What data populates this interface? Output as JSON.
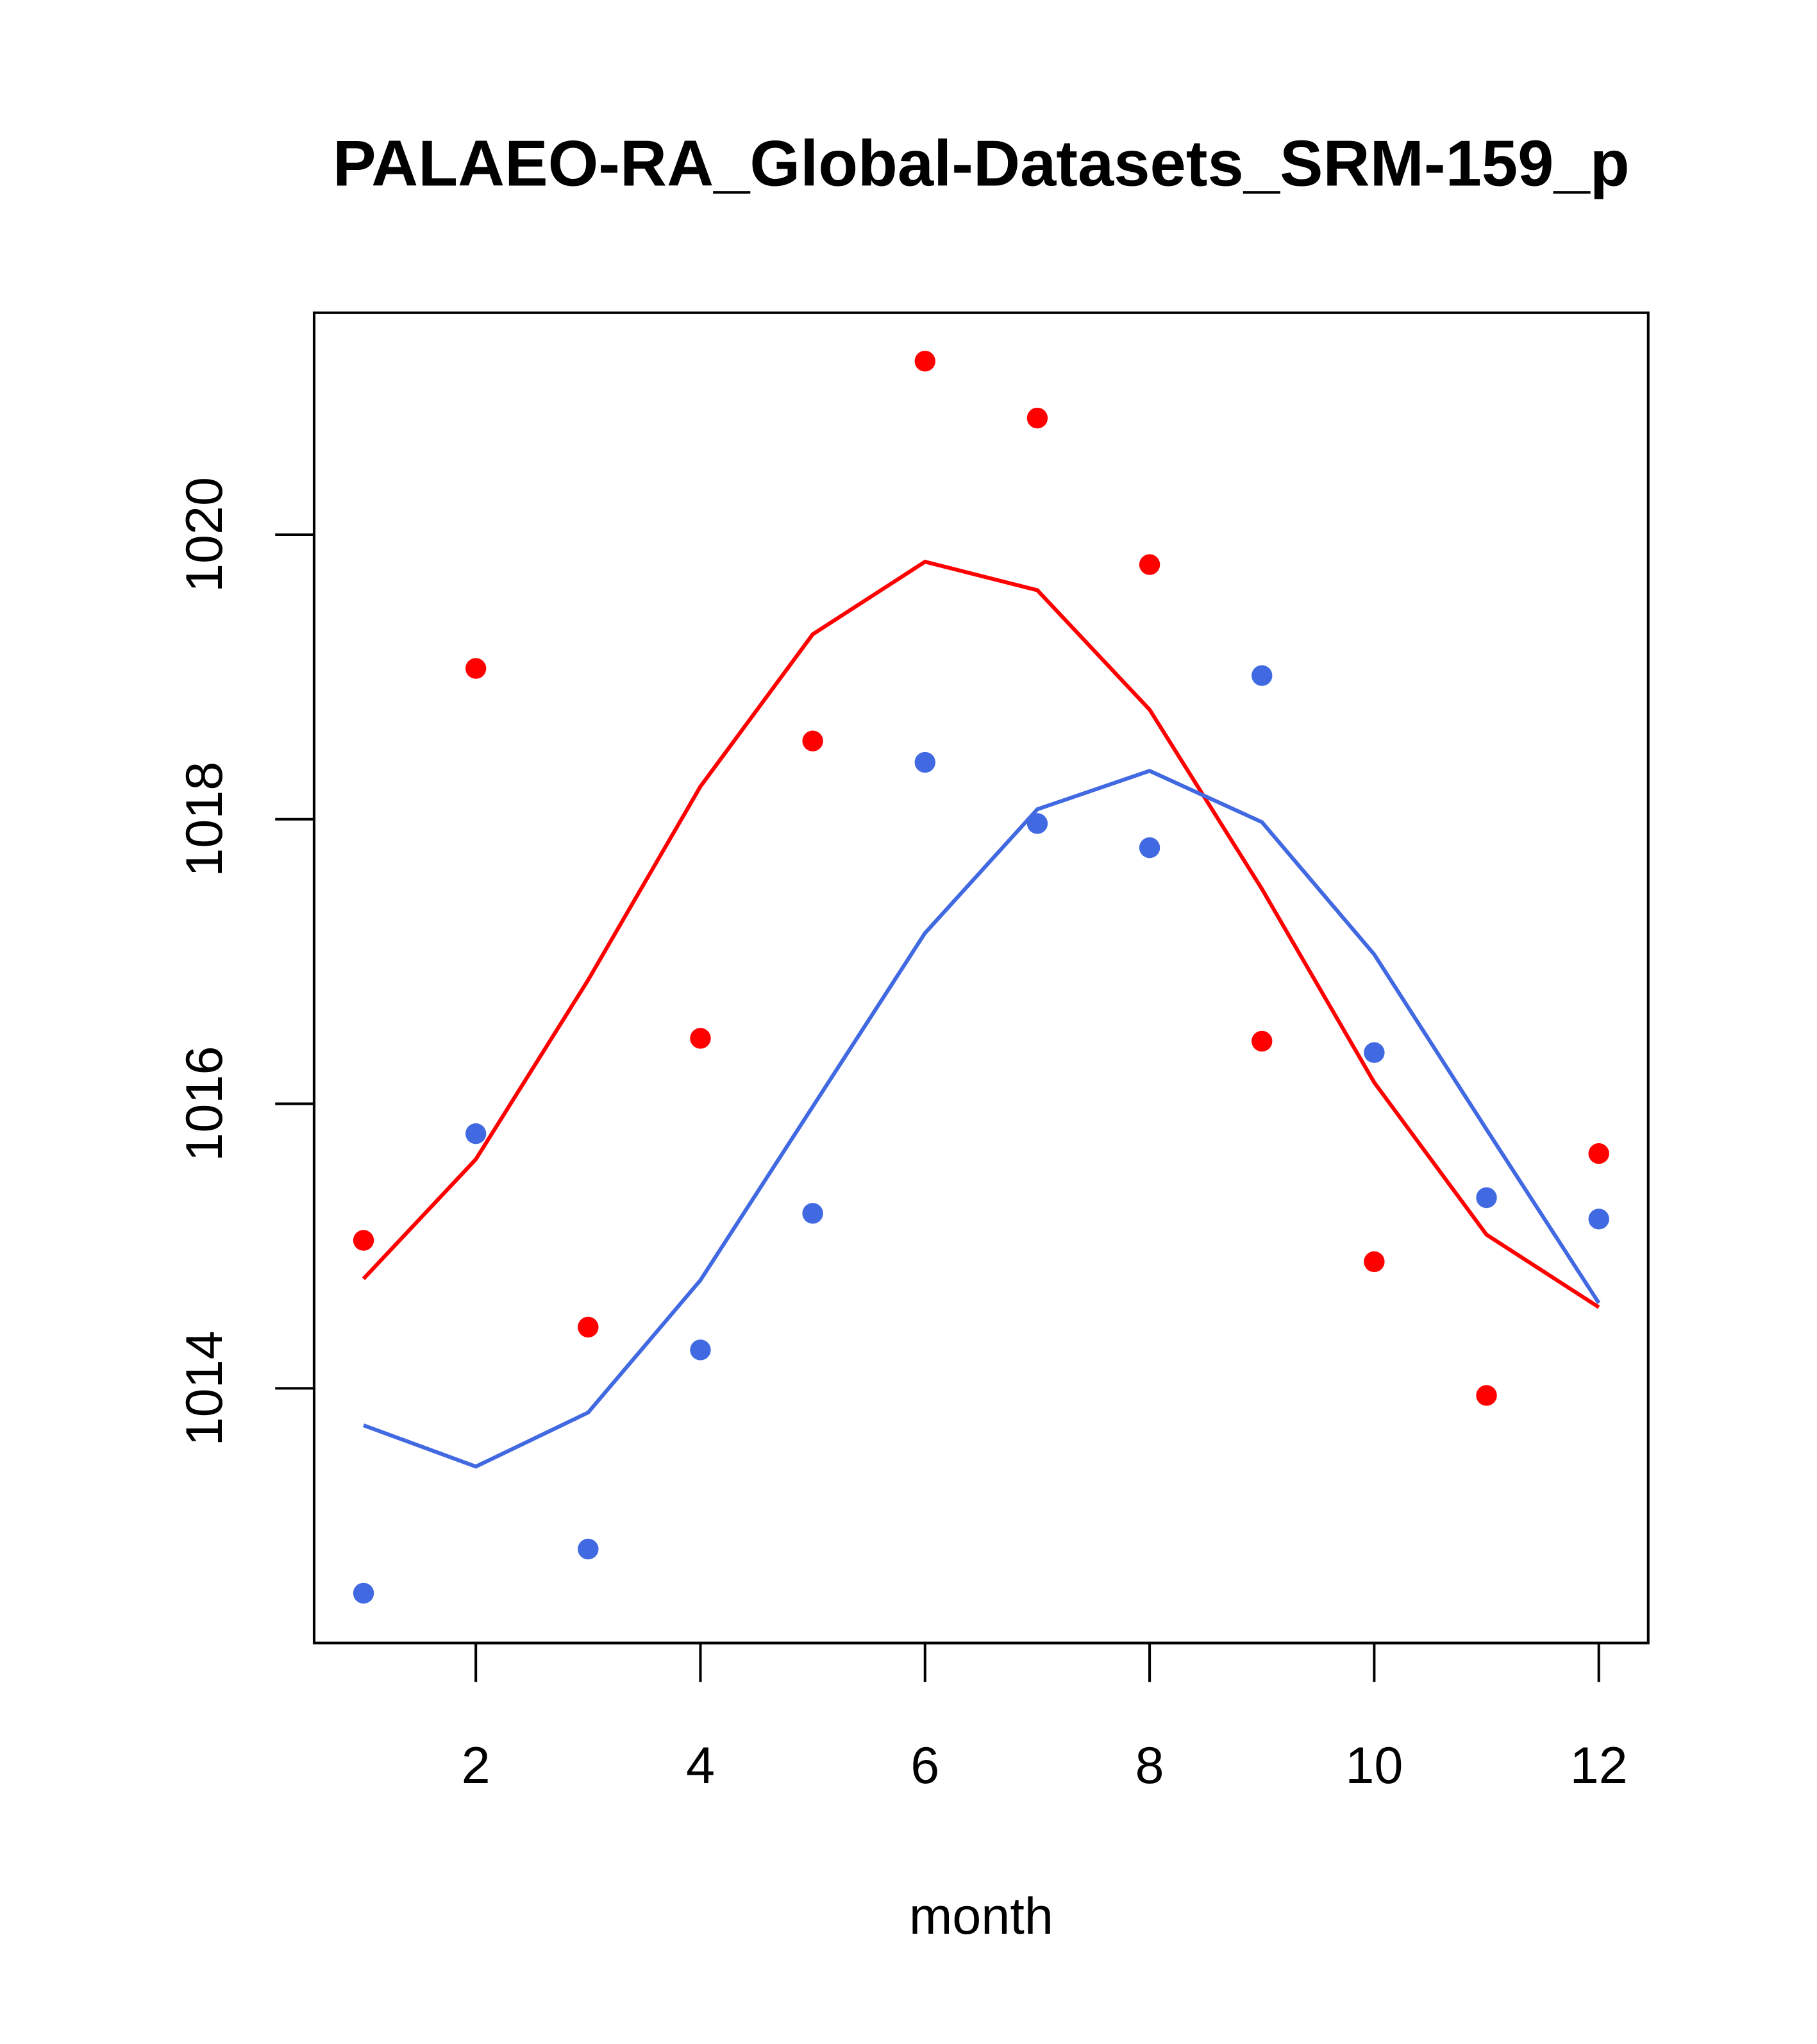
{
  "chart_data": {
    "type": "line",
    "title": "PALAEO-RA_Global-Datasets_SRM-159_p",
    "xlabel": "month",
    "ylabel": "",
    "xlim": [
      0.56,
      12.44
    ],
    "ylim": [
      1012.21,
      1021.56
    ],
    "xticks": [
      2,
      4,
      6,
      8,
      10,
      12
    ],
    "xtick_labels": [
      "2",
      "4",
      "6",
      "8",
      "10",
      "12"
    ],
    "yticks": [
      1014,
      1016,
      1018,
      1020
    ],
    "ytick_labels": [
      "1014",
      "1016",
      "1018",
      "1020"
    ],
    "grid": false,
    "x": [
      1,
      2,
      3,
      4,
      5,
      6,
      7,
      8,
      9,
      10,
      11,
      12
    ],
    "series": [
      {
        "name": "red points",
        "kind": "points",
        "color": "#ff0000",
        "values": [
          1015.04,
          1019.06,
          1014.43,
          1016.46,
          1018.55,
          1021.22,
          1020.82,
          1019.79,
          1016.44,
          1014.89,
          1013.95,
          1015.65
        ]
      },
      {
        "name": "blue points",
        "kind": "points",
        "color": "#4169e1",
        "values": [
          1012.56,
          1015.79,
          1012.87,
          1014.27,
          1015.23,
          1018.4,
          1017.97,
          1017.8,
          1019.01,
          1016.36,
          1015.34,
          1015.19
        ]
      },
      {
        "name": "red line",
        "kind": "line",
        "color": "#ff0000",
        "values": [
          1014.77,
          1015.61,
          1016.87,
          1018.23,
          1019.3,
          1019.81,
          1019.61,
          1018.77,
          1017.51,
          1016.15,
          1015.08,
          1014.57
        ]
      },
      {
        "name": "blue line",
        "kind": "line",
        "color": "#4169e1",
        "values": [
          1013.74,
          1013.45,
          1013.83,
          1014.76,
          1015.98,
          1017.2,
          1018.07,
          1018.34,
          1017.98,
          1017.05,
          1015.82,
          1014.6
        ]
      }
    ]
  }
}
